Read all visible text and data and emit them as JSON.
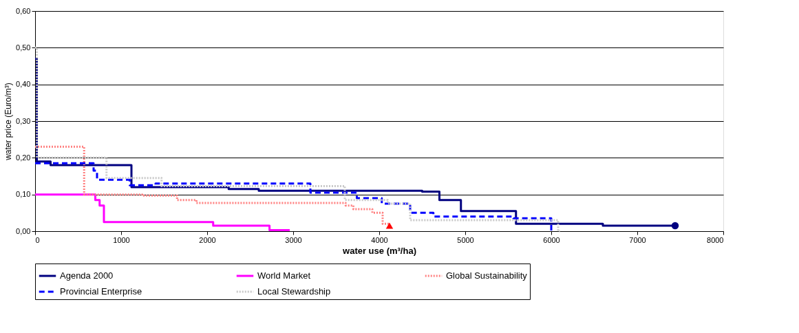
{
  "chart_data": {
    "type": "step",
    "xlabel": "water use (m³/ha)",
    "ylabel": "water price (Euro/m³)",
    "xlim": [
      0,
      8000
    ],
    "xticks": [
      0,
      1000,
      2000,
      3000,
      4000,
      5000,
      6000,
      7000,
      8000
    ],
    "ylim": [
      0,
      0.6
    ],
    "yticks": [
      {
        "value": 0,
        "label": "0,00"
      },
      {
        "value": 0.1,
        "label": "0,10"
      },
      {
        "value": 0.2,
        "label": "0,20"
      },
      {
        "value": 0.3,
        "label": "0,30"
      },
      {
        "value": 0.4,
        "label": "0,40"
      },
      {
        "value": 0.5,
        "label": "0,50"
      },
      {
        "value": 0.6,
        "label": "0,60"
      }
    ],
    "grid": "y",
    "legend": "bottom",
    "series": [
      {
        "name": "Agenda 2000",
        "color": "#000080",
        "line_style": "solid",
        "x": [
          0,
          20,
          180,
          1120,
          2250,
          2600,
          4500,
          4700,
          4950,
          5590,
          6600,
          7440
        ],
        "values": [
          0.47,
          0.19,
          0.18,
          0.12,
          0.115,
          0.11,
          0.108,
          0.085,
          0.055,
          0.02,
          0.015,
          0.015
        ]
      },
      {
        "name": "World Market",
        "color": "#ff00ff",
        "line_style": "solid",
        "x": [
          0,
          700,
          750,
          800,
          2070,
          2725,
          2960
        ],
        "values": [
          0.1,
          0.085,
          0.07,
          0.025,
          0.015,
          0.003,
          0.003
        ]
      },
      {
        "name": "Global Sustainability",
        "color": "#ff8080",
        "line_style": "dotted",
        "x": [
          0,
          570,
          1245,
          1650,
          1875,
          3610,
          3700,
          3920,
          4040,
          4120
        ],
        "values": [
          0.23,
          0.1,
          0.097,
          0.085,
          0.077,
          0.07,
          0.06,
          0.05,
          0.02,
          0.02
        ]
      },
      {
        "name": "Provincial Enterprise",
        "color": "#0000ff",
        "line_style": "dashed",
        "x": [
          0,
          680,
          720,
          1100,
          1400,
          3200,
          3740,
          4030,
          4360,
          4630,
          5560,
          6000,
          6030
        ],
        "values": [
          0.185,
          0.165,
          0.14,
          0.125,
          0.13,
          0.105,
          0.09,
          0.075,
          0.05,
          0.04,
          0.035,
          0.0,
          0.0
        ]
      },
      {
        "name": "Local Stewardship",
        "color": "#c8c8c8",
        "line_style": "dotted",
        "x": [
          0,
          20,
          830,
          1470,
          3600,
          4100,
          4360,
          6080,
          6100
        ],
        "values": [
          0.5,
          0.2,
          0.145,
          0.123,
          0.085,
          0.075,
          0.03,
          0.0,
          0.0
        ]
      },
      {
        "type": "scatter",
        "color": "#000080",
        "marker": "circle",
        "x": [
          7440
        ],
        "values": [
          0.015
        ]
      },
      {
        "type": "scatter",
        "color": "#ff0000",
        "marker": "triangle",
        "x": [
          4120
        ],
        "values": [
          0.015
        ]
      }
    ]
  }
}
